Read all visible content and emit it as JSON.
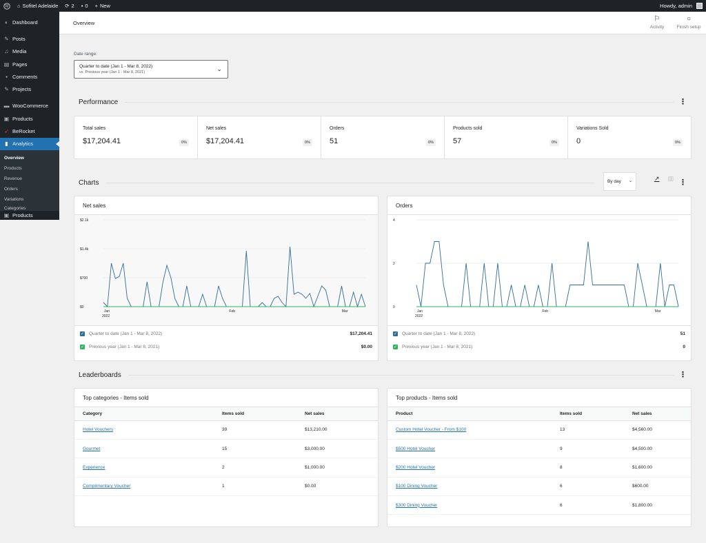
{
  "adminbar": {
    "site_name": "Sofitel Adelaide",
    "updates_count": "2",
    "comments_count": "0",
    "new_label": "New",
    "howdy": "Howdy, admin"
  },
  "sidebar": {
    "items": [
      {
        "label": "Dashboard",
        "icon": "dashboard-icon"
      },
      {
        "label": "Posts",
        "icon": "pin-icon"
      },
      {
        "label": "Media",
        "icon": "media-icon"
      },
      {
        "label": "Pages",
        "icon": "pages-icon"
      },
      {
        "label": "Comments",
        "icon": "comments-icon"
      },
      {
        "label": "Projects",
        "icon": "pin-icon"
      },
      {
        "label": "WooCommerce",
        "icon": "woo-icon"
      },
      {
        "label": "Products",
        "icon": "products-icon"
      },
      {
        "label": "BeRocket",
        "icon": "rocket-icon"
      },
      {
        "label": "Analytics",
        "icon": "analytics-icon"
      }
    ],
    "submenu": [
      "Overview",
      "Products",
      "Revenue",
      "Orders",
      "Variations",
      "Categories"
    ],
    "bottom_item": "Products"
  },
  "header": {
    "title": "Overview",
    "activity_label": "Activity",
    "finish_setup_label": "Finish setup"
  },
  "date_range": {
    "label": "Date range:",
    "primary": "Quarter to date (Jan 1 - Mar 8, 2022)",
    "secondary": "vs. Previous year (Jan 1 - Mar 8, 2021)"
  },
  "performance": {
    "title": "Performance",
    "stats": [
      {
        "label": "Total sales",
        "value": "$17,204.41",
        "delta": "0%"
      },
      {
        "label": "Net sales",
        "value": "$17,204.41",
        "delta": "0%"
      },
      {
        "label": "Orders",
        "value": "51",
        "delta": "0%"
      },
      {
        "label": "Products sold",
        "value": "57",
        "delta": "0%"
      },
      {
        "label": "Variations Sold",
        "value": "0",
        "delta": "0%"
      }
    ]
  },
  "charts": {
    "title": "Charts",
    "interval": "By day",
    "net_sales": {
      "title": "Net sales",
      "legend": [
        {
          "label": "Quarter to date (Jan 1 - Mar 8, 2022)",
          "value": "$17,204.41",
          "color": "#2f6c96"
        },
        {
          "label": "Previous year (Jan 1 - Mar 8, 2021)",
          "value": "$0.00",
          "color": "#2fb35c"
        }
      ]
    },
    "orders": {
      "title": "Orders",
      "legend": [
        {
          "label": "Quarter to date (Jan 1 - Mar 8, 2022)",
          "value": "51",
          "color": "#2f6c96"
        },
        {
          "label": "Previous year (Jan 1 - Mar 8, 2021)",
          "value": "0",
          "color": "#2fb35c"
        }
      ]
    }
  },
  "chart_data": [
    {
      "type": "line",
      "title": "Net sales",
      "y_ticks": [
        "$2.1k",
        "$1.4k",
        "$700",
        "$0"
      ],
      "x_ticks": [
        "Jan",
        "2022",
        "Feb",
        "Mar"
      ],
      "ylim": [
        0,
        2100
      ],
      "series": [
        {
          "name": "Quarter to date (Jan 1 - Mar 8, 2022)",
          "color": "#2f6c96",
          "values": [
            100,
            0,
            1050,
            680,
            730,
            1050,
            200,
            0,
            0,
            0,
            0,
            600,
            0,
            0,
            0,
            600,
            1000,
            700,
            200,
            0,
            0,
            500,
            0,
            0,
            0,
            300,
            0,
            0,
            0,
            500,
            200,
            0,
            0,
            0,
            0,
            0,
            1350,
            0,
            0,
            0,
            100,
            0,
            0,
            200,
            250,
            100,
            0,
            1450,
            300,
            350,
            300,
            200,
            320,
            0,
            250,
            500,
            400,
            0,
            0,
            0,
            500,
            0,
            0,
            350,
            0,
            300,
            0
          ]
        },
        {
          "name": "Previous year (Jan 1 - Mar 8, 2021)",
          "color": "#2fb35c",
          "values": [
            0,
            0,
            0,
            0,
            0,
            0,
            0,
            0,
            0,
            0,
            0,
            0,
            0,
            0,
            0,
            0,
            0,
            0,
            0,
            0,
            0,
            0,
            0,
            0,
            0,
            0,
            0,
            0,
            0,
            0,
            0,
            0,
            0,
            0,
            0,
            0,
            0,
            0,
            0,
            0,
            0,
            0,
            0,
            0,
            0,
            0,
            0,
            0,
            0,
            0,
            0,
            0,
            0,
            0,
            0,
            0,
            0,
            0,
            0,
            0,
            0,
            0,
            0,
            0,
            0,
            0,
            0
          ]
        }
      ]
    },
    {
      "type": "line",
      "title": "Orders",
      "y_ticks": [
        "4",
        "2",
        "0"
      ],
      "x_ticks": [
        "Jan",
        "2022",
        "Feb",
        "Mar"
      ],
      "ylim": [
        0,
        4
      ],
      "series": [
        {
          "name": "Quarter to date (Jan 1 - Mar 8, 2022)",
          "color": "#2f6c96",
          "values": [
            1,
            0,
            2,
            2,
            3,
            3,
            1,
            0,
            0,
            0,
            0,
            2,
            0,
            0,
            0,
            2,
            0,
            0,
            2,
            0,
            0,
            1,
            0,
            0,
            1,
            0,
            0,
            1,
            0,
            0,
            2,
            0,
            0,
            0,
            1,
            1,
            1,
            1,
            3,
            1,
            1,
            1,
            1,
            1,
            1,
            1,
            1,
            0,
            0,
            2,
            1,
            0,
            0,
            0,
            2,
            0,
            1,
            1,
            0
          ]
        },
        {
          "name": "Previous year (Jan 1 - Mar 8, 2021)",
          "color": "#2fb35c",
          "values": [
            0,
            0,
            0,
            0,
            0,
            0,
            0,
            0,
            0,
            0,
            0,
            0,
            0,
            0,
            0,
            0,
            0,
            0,
            0,
            0,
            0,
            0,
            0,
            0,
            0,
            0,
            0,
            0,
            0,
            0,
            0,
            0,
            0,
            0,
            0,
            0,
            0,
            0,
            0,
            0,
            0,
            0,
            0,
            0,
            0,
            0,
            0,
            0,
            0,
            0,
            0,
            0,
            0,
            0,
            0,
            0,
            0,
            0,
            0
          ]
        }
      ]
    }
  ],
  "leaderboards": {
    "title": "Leaderboards",
    "categories": {
      "title": "Top categories - Items sold",
      "headers": [
        "Category",
        "Items sold",
        "Net sales"
      ],
      "rows": [
        [
          "Hotel Vouchers",
          "39",
          "$13,210.00"
        ],
        [
          "Gourmet",
          "15",
          "$3,000.00"
        ],
        [
          "Experience",
          "2",
          "$1,000.00"
        ],
        [
          "Complimentary Voucher",
          "1",
          "$0.00"
        ]
      ]
    },
    "products": {
      "title": "Top products - Items sold",
      "headers": [
        "Product",
        "Items sold",
        "Net sales"
      ],
      "rows": [
        [
          "Custom Hotel Voucher - From $100",
          "13",
          "$4,560.00"
        ],
        [
          "$500 Hotel Voucher",
          "9",
          "$4,500.00"
        ],
        [
          "$200 Hotel Voucher",
          "8",
          "$1,600.00"
        ],
        [
          "$100 Dining Voucher",
          "6",
          "$600.00"
        ],
        [
          "$300 Dining Voucher",
          "6",
          "$1,800.00"
        ]
      ]
    }
  }
}
